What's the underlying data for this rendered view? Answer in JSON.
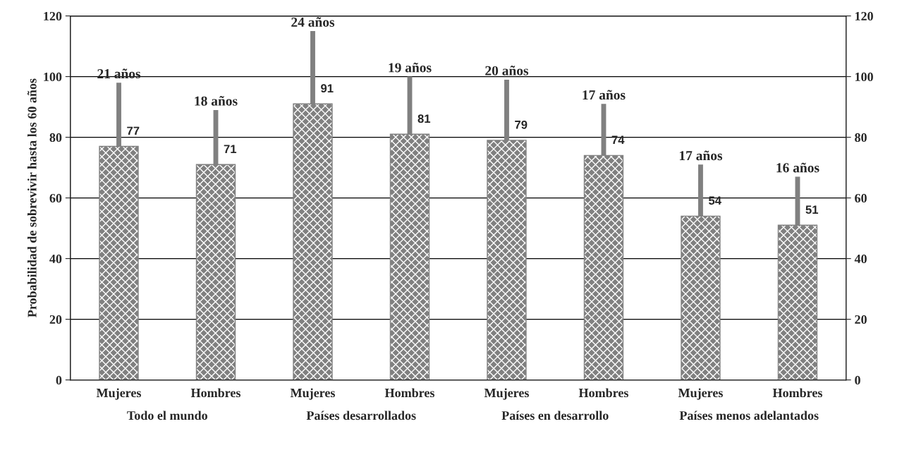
{
  "chart_data": {
    "type": "bar",
    "ylabel": "Probabilidad de sobrevivir hasta los 60 años",
    "categories": [
      "Mujeres",
      "Hombres",
      "Mujeres",
      "Hombres",
      "Mujeres",
      "Hombres",
      "Mujeres",
      "Hombres"
    ],
    "stacked": true,
    "series": [
      {
        "color": "#808080",
        "values": [
          77,
          71,
          91,
          81,
          79,
          74,
          54,
          51
        ],
        "value_labels": [
          "77",
          "71",
          "91",
          "81",
          "79",
          "74",
          "54",
          "51"
        ]
      },
      {
        "color": "#808080",
        "values": [
          21,
          18,
          24,
          19,
          20,
          17,
          17,
          16
        ],
        "value_labels": [
          "21 años",
          "18 años",
          "24 años",
          "19 años",
          "20 años",
          "17 años",
          "17 años",
          "16 años"
        ]
      }
    ],
    "annotations": [
      "Todo el mundo",
      "Países desarrollados",
      "Países en desarrollo",
      "Países menos adelantados"
    ],
    "ylim": [
      0,
      120
    ],
    "yticks": [
      0,
      20,
      40,
      60,
      80,
      100,
      120
    ],
    "y2lim": [
      0,
      120
    ],
    "y2ticks": [
      0,
      20,
      40,
      60,
      80,
      100,
      120
    ],
    "grid": "y",
    "legend": false
  }
}
